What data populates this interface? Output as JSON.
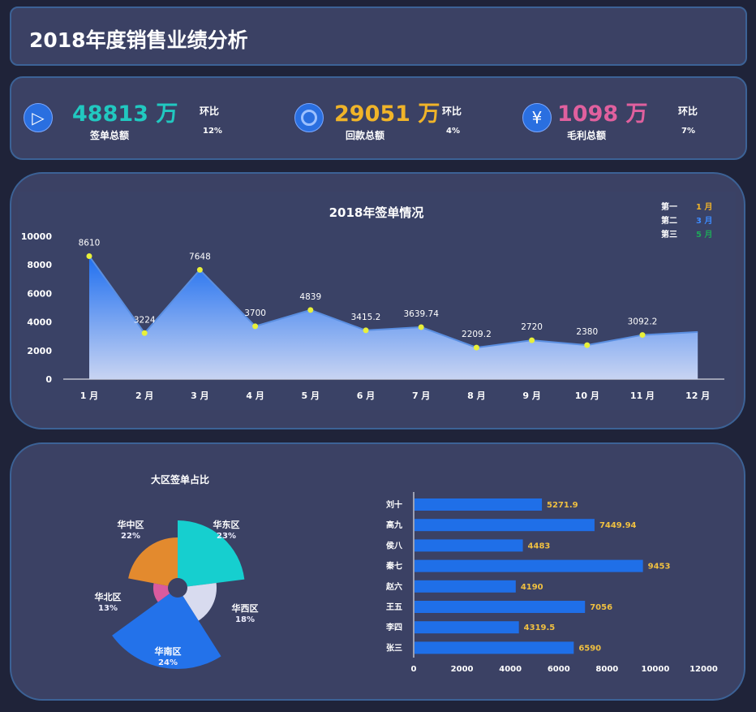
{
  "header": {
    "title": "2018年度销售业绩分析"
  },
  "kpis": [
    {
      "value": "48813 万",
      "label": "签单总额",
      "ratio_label": "环比",
      "ratio": "12%",
      "color": "#21c8c0",
      "icon": "play-icon"
    },
    {
      "value": "29051 万",
      "label": "回款总额",
      "ratio_label": "环比",
      "ratio": "4%",
      "color": "#f0b429",
      "icon": "target-icon"
    },
    {
      "value": "1098 万",
      "label": "毛利总额",
      "ratio_label": "环比",
      "ratio": "7%",
      "color": "#e0609e",
      "icon": "yen-icon"
    }
  ],
  "chart_data": [
    {
      "type": "area",
      "title": "2018年签单情况",
      "categories": [
        "1 月",
        "2 月",
        "3 月",
        "4 月",
        "5 月",
        "6 月",
        "7 月",
        "8 月",
        "9 月",
        "10 月",
        "11 月",
        "12 月"
      ],
      "values": [
        8610,
        3224,
        7648,
        3700,
        4839,
        3415.2,
        3639.74,
        2209.2,
        2720,
        2380,
        3092.2,
        3300
      ],
      "labels": [
        "8610",
        "3224",
        "7648",
        "3700",
        "4839",
        "3415.2",
        "3639.74",
        "2209.2",
        "2720",
        "2380",
        "3092.2",
        ""
      ],
      "yticks": [
        "0",
        "2000",
        "4000",
        "6000",
        "8000",
        "10000"
      ],
      "ylim": [
        0,
        10000
      ],
      "ranking": [
        {
          "label": "第一",
          "value": "1 月",
          "color": "#f0b429"
        },
        {
          "label": "第二",
          "value": "3 月",
          "color": "#3d8bff"
        },
        {
          "label": "第三",
          "value": "5 月",
          "color": "#1fa85a"
        }
      ]
    },
    {
      "type": "pie",
      "rose": true,
      "title": "大区签单占比",
      "slices": [
        {
          "name": "华东区",
          "pct": "23%",
          "value": 23,
          "color": "#16cfcf"
        },
        {
          "name": "华西区",
          "pct": "18%",
          "value": 18,
          "color": "#d8dbef"
        },
        {
          "name": "华南区",
          "pct": "24%",
          "value": 24,
          "color": "#2372ea"
        },
        {
          "name": "华北区",
          "pct": "13%",
          "value": 13,
          "color": "#d95b9e"
        },
        {
          "name": "华中区",
          "pct": "22%",
          "value": 22,
          "color": "#e38a2e"
        }
      ]
    },
    {
      "type": "bar",
      "orientation": "horizontal",
      "categories": [
        "刘十",
        "高九",
        "侯八",
        "秦七",
        "赵六",
        "王五",
        "李四",
        "张三"
      ],
      "values": [
        5271.9,
        7449.94,
        4483,
        9453,
        4190,
        7056,
        4319.5,
        6590
      ],
      "labels": [
        "5271.9",
        "7449.94",
        "4483",
        "9453",
        "4190",
        "7056",
        "4319.5",
        "6590"
      ],
      "xticks": [
        "0",
        "2000",
        "4000",
        "6000",
        "8000",
        "10000",
        "12000"
      ],
      "xlim": [
        0,
        12000
      ]
    }
  ]
}
